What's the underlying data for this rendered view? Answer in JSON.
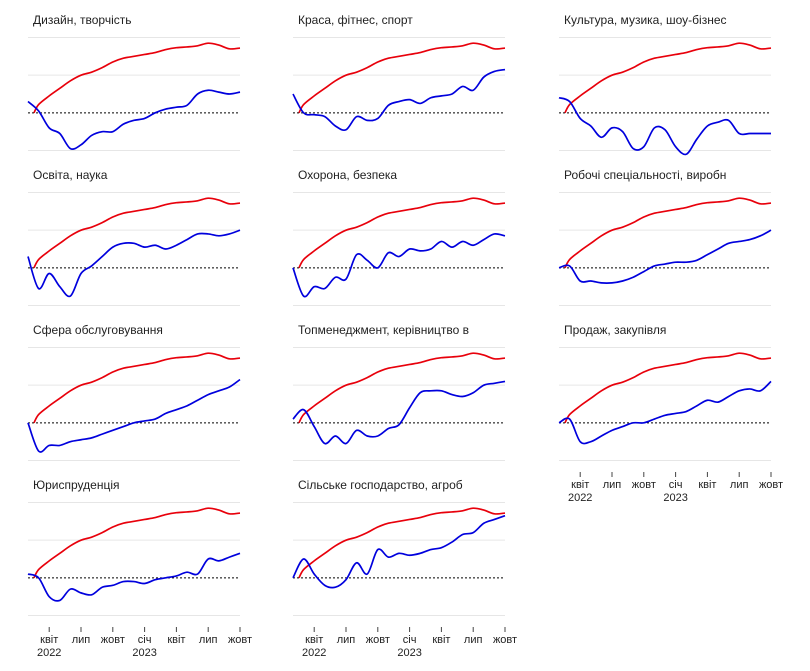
{
  "chart_data": {
    "type": "line",
    "x_tick_labels": [
      {
        "label": "квіт",
        "year": "2022"
      },
      {
        "label": "лип",
        "year": ""
      },
      {
        "label": "жовт",
        "year": ""
      },
      {
        "label": "січ",
        "year": "2023"
      },
      {
        "label": "квіт",
        "year": ""
      },
      {
        "label": "лип",
        "year": ""
      },
      {
        "label": "жовт",
        "year": ""
      }
    ],
    "x_months": [
      "2022-02",
      "2022-03",
      "2022-04",
      "2022-05",
      "2022-06",
      "2022-07",
      "2022-08",
      "2022-09",
      "2022-10",
      "2022-11",
      "2022-12",
      "2023-01",
      "2023-02",
      "2023-03",
      "2023-04",
      "2023-05",
      "2023-06",
      "2023-07",
      "2023-08",
      "2023-09",
      "2023-10"
    ],
    "ylim": [
      -1.2,
      2.2
    ],
    "grid_y": [
      -1,
      0,
      1,
      2
    ],
    "reference_line_y": 0,
    "colors": {
      "overall": "#e8000b",
      "category": "#0000dd",
      "grid": "#e6e6e6",
      "reference": "#000000",
      "text": "#222222"
    },
    "overall_series": [
      0,
      0.22,
      0.45,
      0.65,
      0.85,
      1.0,
      1.08,
      1.2,
      1.35,
      1.45,
      1.5,
      1.55,
      1.6,
      1.68,
      1.73,
      1.75,
      1.78,
      1.85,
      1.8,
      1.7,
      1.72
    ],
    "panels": [
      {
        "title": "Дизайн, творчість",
        "values": [
          0.3,
          0.05,
          -0.4,
          -0.55,
          -0.95,
          -0.85,
          -0.6,
          -0.5,
          -0.5,
          -0.3,
          -0.2,
          -0.15,
          0.0,
          0.1,
          0.15,
          0.2,
          0.5,
          0.6,
          0.55,
          0.5,
          0.55
        ]
      },
      {
        "title": "Краса, фітнес, спорт",
        "values": [
          0.5,
          0.0,
          -0.05,
          -0.1,
          -0.35,
          -0.45,
          -0.1,
          -0.2,
          -0.15,
          0.2,
          0.3,
          0.35,
          0.25,
          0.4,
          0.45,
          0.5,
          0.7,
          0.6,
          0.95,
          1.1,
          1.15
        ]
      },
      {
        "title": "Культура, музика, шоу-бізнес",
        "values": [
          0.4,
          0.3,
          -0.15,
          -0.35,
          -0.65,
          -0.4,
          -0.5,
          -0.95,
          -0.9,
          -0.4,
          -0.45,
          -0.9,
          -1.1,
          -0.7,
          -0.35,
          -0.25,
          -0.2,
          -0.55,
          -0.55,
          -0.55,
          -0.55
        ]
      },
      {
        "title": "Освіта, наука",
        "values": [
          0.3,
          -0.55,
          -0.15,
          -0.5,
          -0.75,
          -0.15,
          0.05,
          0.3,
          0.55,
          0.65,
          0.65,
          0.55,
          0.6,
          0.5,
          0.6,
          0.75,
          0.9,
          0.9,
          0.85,
          0.9,
          1.0
        ]
      },
      {
        "title": "Охорона, безпека",
        "values": [
          0.0,
          -0.75,
          -0.5,
          -0.55,
          -0.25,
          -0.3,
          0.35,
          0.2,
          0.0,
          0.4,
          0.3,
          0.5,
          0.45,
          0.5,
          0.7,
          0.55,
          0.7,
          0.6,
          0.75,
          0.9,
          0.85
        ]
      },
      {
        "title": "Робочі спеціальності, виробн",
        "values": [
          0.0,
          0.05,
          -0.35,
          -0.35,
          -0.4,
          -0.4,
          -0.35,
          -0.25,
          -0.1,
          0.05,
          0.1,
          0.15,
          0.15,
          0.2,
          0.35,
          0.5,
          0.65,
          0.7,
          0.75,
          0.85,
          1.0
        ]
      },
      {
        "title": "Сфера обслуговування",
        "values": [
          0.0,
          -0.75,
          -0.6,
          -0.6,
          -0.5,
          -0.45,
          -0.4,
          -0.3,
          -0.2,
          -0.1,
          0.0,
          0.05,
          0.1,
          0.25,
          0.35,
          0.45,
          0.6,
          0.75,
          0.85,
          0.95,
          1.15
        ]
      },
      {
        "title": "Топменеджмент, керівництво в",
        "values": [
          0.1,
          0.35,
          -0.1,
          -0.55,
          -0.35,
          -0.55,
          -0.2,
          -0.35,
          -0.35,
          -0.15,
          -0.05,
          0.4,
          0.8,
          0.85,
          0.85,
          0.75,
          0.7,
          0.8,
          1.0,
          1.05,
          1.1
        ]
      },
      {
        "title": "Продаж, закупівля",
        "values": [
          0.0,
          0.1,
          -0.5,
          -0.5,
          -0.35,
          -0.2,
          -0.1,
          0.0,
          0.0,
          0.1,
          0.2,
          0.25,
          0.3,
          0.45,
          0.6,
          0.55,
          0.7,
          0.85,
          0.9,
          0.85,
          1.1
        ]
      },
      {
        "title": "Юриспруденція",
        "values": [
          0.1,
          0.0,
          -0.5,
          -0.6,
          -0.3,
          -0.4,
          -0.45,
          -0.25,
          -0.2,
          -0.1,
          -0.1,
          -0.15,
          -0.05,
          0.0,
          0.05,
          0.15,
          0.1,
          0.5,
          0.45,
          0.55,
          0.65
        ]
      },
      {
        "title": "Сільське господарство, агроб",
        "values": [
          0.0,
          0.5,
          0.1,
          -0.2,
          -0.25,
          -0.05,
          0.4,
          0.1,
          0.75,
          0.55,
          0.65,
          0.6,
          0.65,
          0.75,
          0.8,
          0.95,
          1.15,
          1.2,
          1.45,
          1.55,
          1.65
        ]
      }
    ]
  }
}
